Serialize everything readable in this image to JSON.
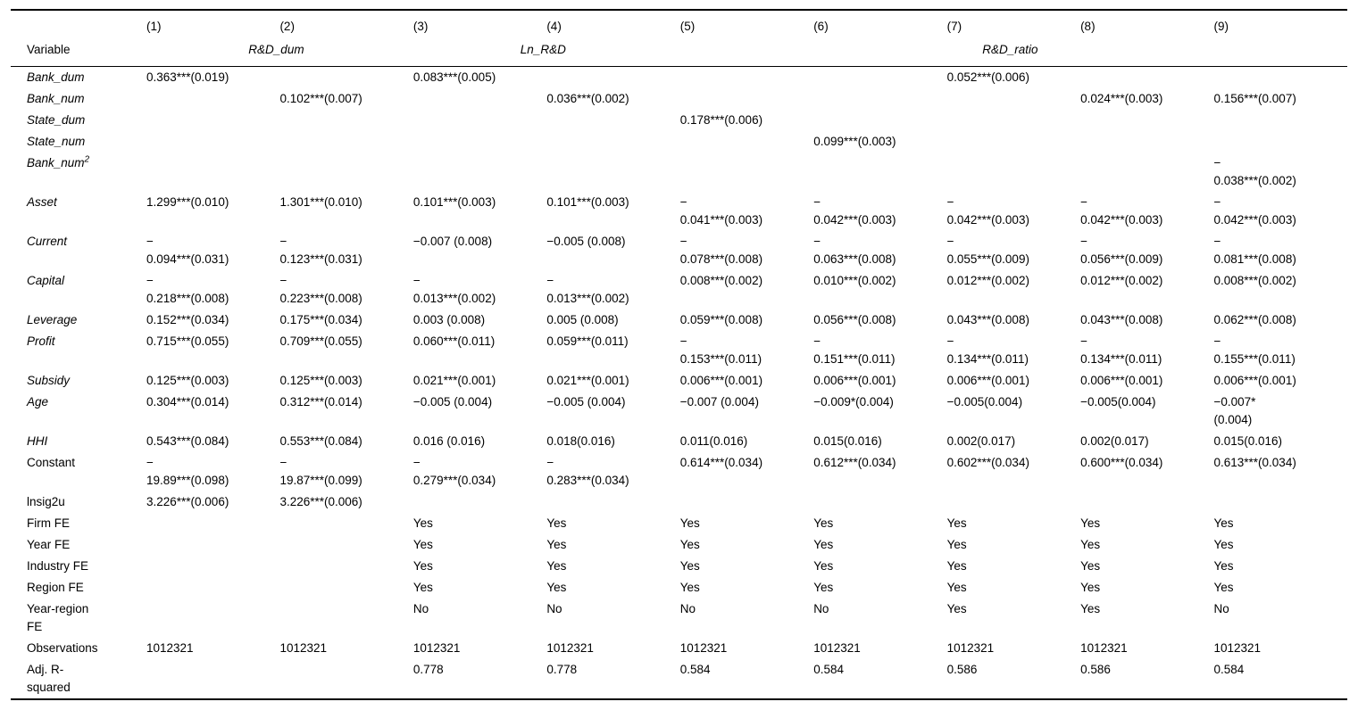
{
  "page": {
    "background": "#ffffff",
    "text_color": "#000000"
  },
  "table": {
    "header": {
      "corner_label": "Variable",
      "column_numbers": [
        "(1)",
        "(2)",
        "(3)",
        "(4)",
        "(5)",
        "(6)",
        "(7)",
        "(8)",
        "(9)"
      ],
      "groups": [
        {
          "label": "R&D_dum",
          "colspan": 2
        },
        {
          "label": "Ln_R&D",
          "colspan": 2
        },
        {
          "label": "R&D_ratio",
          "colspan": 5
        }
      ]
    },
    "rows": [
      {
        "label": "Bank_dum",
        "italic": true,
        "cells": [
          "0.363***(0.019)",
          "",
          "0.083***(0.005)",
          "",
          "",
          "",
          "0.052***(0.006)",
          "",
          ""
        ]
      },
      {
        "label": "Bank_num",
        "italic": true,
        "cells": [
          "",
          "0.102***(0.007)",
          "",
          "0.036***(0.002)",
          "",
          "",
          "",
          "0.024***(0.003)",
          "0.156***(0.007)"
        ]
      },
      {
        "label": "State_dum",
        "italic": true,
        "cells": [
          "",
          "",
          "",
          "",
          "0.178***(0.006)",
          "",
          "",
          "",
          ""
        ]
      },
      {
        "label": "State_num",
        "italic": true,
        "cells": [
          "",
          "",
          "",
          "",
          "",
          "0.099***(0.003)",
          "",
          "",
          ""
        ]
      },
      {
        "label": "Bank_num^2",
        "italic": true,
        "cells": [
          "",
          "",
          "",
          "",
          "",
          "",
          "",
          "",
          "−\n0.038***(0.002)"
        ]
      },
      {
        "label": "Asset",
        "italic": true,
        "cells": [
          "1.299***(0.010)",
          "1.301***(0.010)",
          "0.101***(0.003)",
          "0.101***(0.003)",
          "−\n0.041***(0.003)",
          "−\n0.042***(0.003)",
          "−\n0.042***(0.003)",
          "−\n0.042***(0.003)",
          "−\n0.042***(0.003)"
        ]
      },
      {
        "label": "Current",
        "italic": true,
        "cells": [
          "−\n0.094***(0.031)",
          "−\n0.123***(0.031)",
          "−0.007 (0.008)",
          "−0.005 (0.008)",
          "−\n0.078***(0.008)",
          "−\n0.063***(0.008)",
          "−\n0.055***(0.009)",
          "−\n0.056***(0.009)",
          "−\n0.081***(0.008)"
        ]
      },
      {
        "label": "Capital",
        "italic": true,
        "cells": [
          "−\n0.218***(0.008)",
          "−\n0.223***(0.008)",
          "−\n0.013***(0.002)",
          "−\n0.013***(0.002)",
          "0.008***(0.002)",
          "0.010***(0.002)",
          "0.012***(0.002)",
          "0.012***(0.002)",
          "0.008***(0.002)"
        ]
      },
      {
        "label": "Leverage",
        "italic": true,
        "cells": [
          "0.152***(0.034)",
          "0.175***(0.034)",
          "0.003 (0.008)",
          "0.005 (0.008)",
          "0.059***(0.008)",
          "0.056***(0.008)",
          "0.043***(0.008)",
          "0.043***(0.008)",
          "0.062***(0.008)"
        ]
      },
      {
        "label": "Profit",
        "italic": true,
        "cells": [
          "0.715***(0.055)",
          "0.709***(0.055)",
          "0.060***(0.011)",
          "0.059***(0.011)",
          "−\n0.153***(0.011)",
          "−\n0.151***(0.011)",
          "−\n0.134***(0.011)",
          "−\n0.134***(0.011)",
          "−\n0.155***(0.011)"
        ]
      },
      {
        "label": "Subsidy",
        "italic": true,
        "cells": [
          "0.125***(0.003)",
          "0.125***(0.003)",
          "0.021***(0.001)",
          "0.021***(0.001)",
          "0.006***(0.001)",
          "0.006***(0.001)",
          "0.006***(0.001)",
          "0.006***(0.001)",
          "0.006***(0.001)"
        ]
      },
      {
        "label": "Age",
        "italic": true,
        "cells": [
          "0.304***(0.014)",
          "0.312***(0.014)",
          "−0.005 (0.004)",
          "−0.005 (0.004)",
          "−0.007 (0.004)",
          "−0.009*(0.004)",
          "−0.005(0.004)",
          "−0.005(0.004)",
          "−0.007*\n(0.004)"
        ]
      },
      {
        "label": "HHI",
        "italic": true,
        "cells": [
          "0.543***(0.084)",
          "0.553***(0.084)",
          "0.016 (0.016)",
          "0.018(0.016)",
          "0.011(0.016)",
          "0.015(0.016)",
          "0.002(0.017)",
          "0.002(0.017)",
          "0.015(0.016)"
        ]
      },
      {
        "label": "Constant",
        "italic": false,
        "cells": [
          "−\n19.89***(0.098)",
          "−\n19.87***(0.099)",
          "−\n0.279***(0.034)",
          "−\n0.283***(0.034)",
          "0.614***(0.034)",
          "0.612***(0.034)",
          "0.602***(0.034)",
          "0.600***(0.034)",
          "0.613***(0.034)"
        ]
      },
      {
        "label": "lnsig2u",
        "italic": false,
        "cells": [
          "3.226***(0.006)",
          "3.226***(0.006)",
          "",
          "",
          "",
          "",
          "",
          "",
          ""
        ]
      },
      {
        "label": "Firm FE",
        "italic": false,
        "cells": [
          "",
          "",
          "Yes",
          "Yes",
          "Yes",
          "Yes",
          "Yes",
          "Yes",
          "Yes"
        ]
      },
      {
        "label": "Year FE",
        "italic": false,
        "cells": [
          "",
          "",
          "Yes",
          "Yes",
          "Yes",
          "Yes",
          "Yes",
          "Yes",
          "Yes"
        ]
      },
      {
        "label": "Industry FE",
        "italic": false,
        "cells": [
          "",
          "",
          "Yes",
          "Yes",
          "Yes",
          "Yes",
          "Yes",
          "Yes",
          "Yes"
        ]
      },
      {
        "label": "Region FE",
        "italic": false,
        "cells": [
          "",
          "",
          "Yes",
          "Yes",
          "Yes",
          "Yes",
          "Yes",
          "Yes",
          "Yes"
        ]
      },
      {
        "label": "Year-region\nFE",
        "italic": false,
        "cells": [
          "",
          "",
          "No",
          "No",
          "No",
          "No",
          "Yes",
          "Yes",
          "No"
        ]
      },
      {
        "label": "Observations",
        "italic": false,
        "cells": [
          "1012321",
          "1012321",
          "1012321",
          "1012321",
          "1012321",
          "1012321",
          "1012321",
          "1012321",
          "1012321"
        ]
      },
      {
        "label": "Adj. R-\nsquared",
        "italic": false,
        "cells": [
          "",
          "",
          "0.778",
          "0.778",
          "0.584",
          "0.584",
          "0.586",
          "0.586",
          "0.584"
        ]
      }
    ]
  }
}
